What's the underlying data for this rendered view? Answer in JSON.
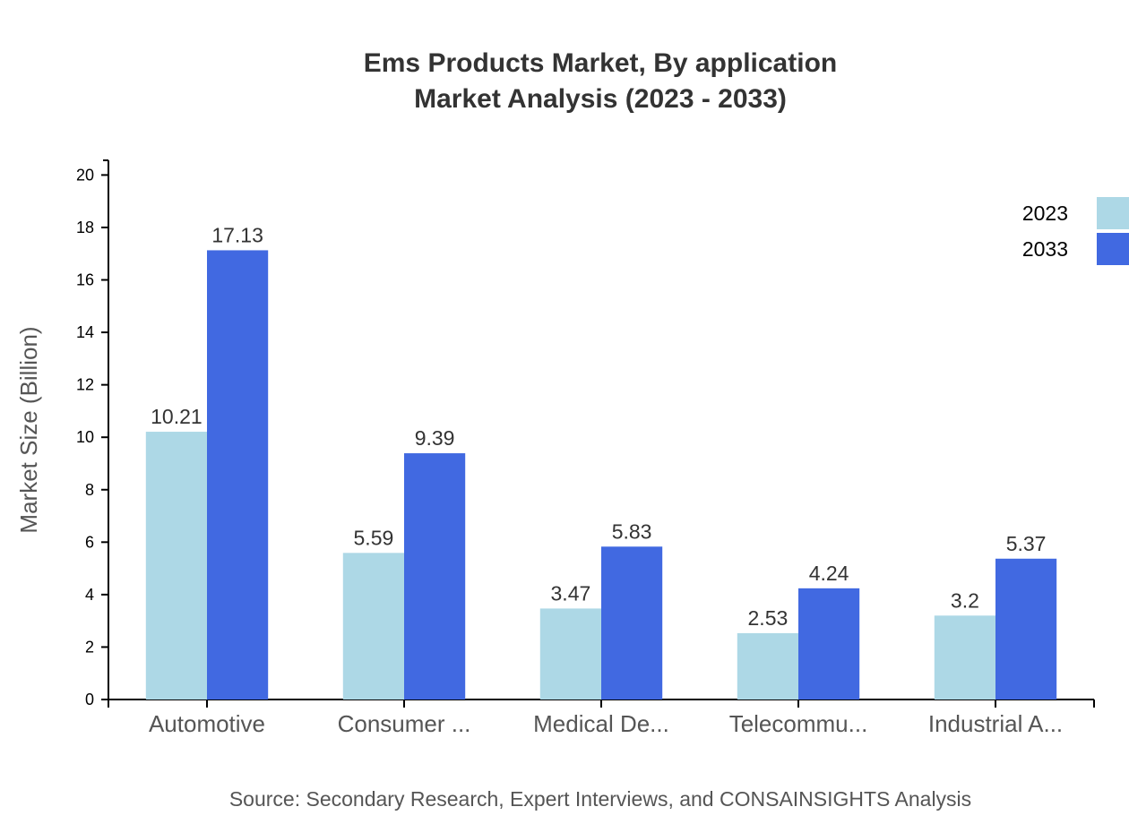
{
  "chart_data": {
    "type": "bar",
    "title": "Ems Products Market, By application",
    "subtitle": "Market Analysis (2023 - 2033)",
    "xlabel": "",
    "ylabel": "Market Size (Billion)",
    "categories": [
      "Automotive",
      "Consumer ...",
      "Medical De...",
      "Telecommu...",
      "Industrial A..."
    ],
    "series": [
      {
        "name": "2023",
        "color": "#add8e6",
        "values": [
          10.21,
          5.59,
          3.47,
          2.53,
          3.2
        ]
      },
      {
        "name": "2033",
        "color": "#4169e1",
        "values": [
          17.13,
          9.39,
          5.83,
          4.24,
          5.37
        ]
      }
    ],
    "ylim": [
      0,
      20.56
    ],
    "yticks": [
      0,
      2,
      4,
      6,
      8,
      10,
      12,
      14,
      16,
      18,
      20
    ],
    "grid": false,
    "legend_position": "top-right",
    "source": "Source: Secondary Research, Expert Interviews, and CONSAINSIGHTS Analysis"
  }
}
